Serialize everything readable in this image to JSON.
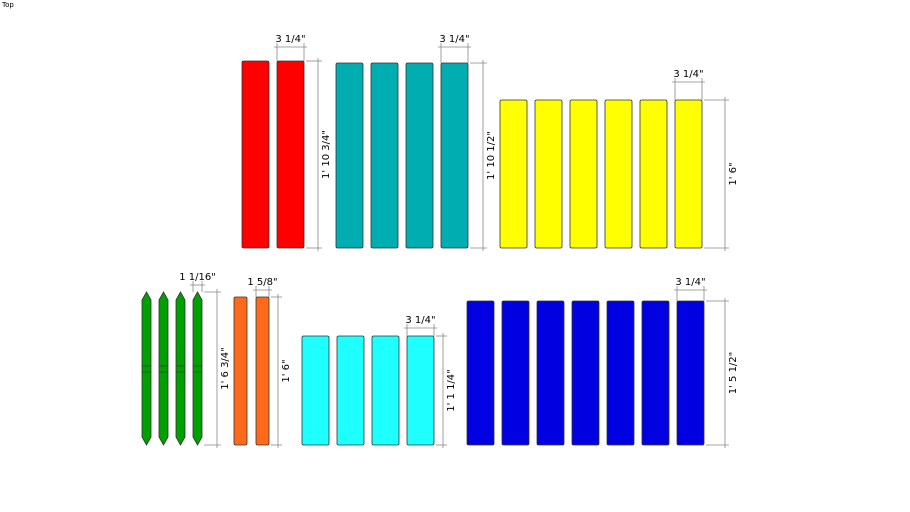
{
  "view_label": "Top",
  "groups": [
    {
      "width": "3 1/4\"",
      "height": "1' 10 3/4\""
    },
    {
      "width": "3 1/4\"",
      "height": "1' 10 1/2\""
    },
    {
      "width": "3 1/4\"",
      "height": "1' 6\""
    },
    {
      "width": "1 1/16\"",
      "height": "1' 6 3/4\""
    },
    {
      "width": "1 5/8\"",
      "height": "1' 6\""
    },
    {
      "width": "3 1/4\"",
      "height": "1' 1 1/4\""
    },
    {
      "width": "3 1/4\"",
      "height": "1' 5 1/2\""
    }
  ]
}
